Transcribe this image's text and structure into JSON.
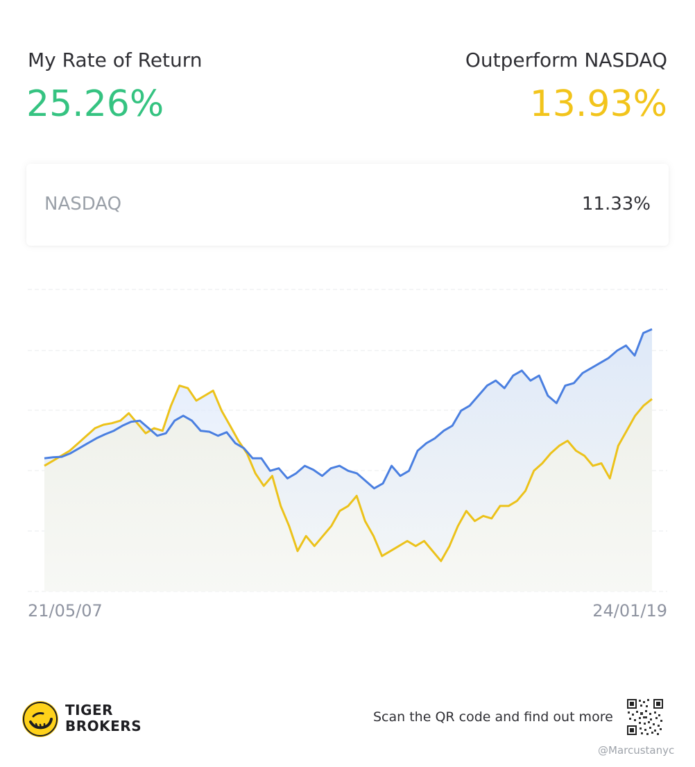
{
  "summary": {
    "my_return_label": "My Rate of Return",
    "my_return_value": "25.26%",
    "outperform_label": "Outperform NASDAQ",
    "outperform_value": "13.93%"
  },
  "benchmark": {
    "name": "NASDAQ",
    "value": "11.33%"
  },
  "colors": {
    "portfolio": "#4a7fe0",
    "nasdaq": "#ecc21a",
    "gain": "#35c381",
    "outperform": "#f2c41b"
  },
  "chart_data": {
    "type": "line",
    "x_start_label": "21/05/07",
    "x_end_label": "24/01/19",
    "grid": true,
    "series": [
      {
        "color": "#4a7fe0",
        "values": [
          -0.5,
          -0.3,
          -0.2,
          0.5,
          1.5,
          2.5,
          3.5,
          4.3,
          5.0,
          6.0,
          6.8,
          7.0,
          5.5,
          4.0,
          4.5,
          7.0,
          8.0,
          7.0,
          5.0,
          4.8,
          4.0,
          4.7,
          2.5,
          1.5,
          -0.5,
          -0.5,
          -3.0,
          -2.5,
          -4.5,
          -3.5,
          -2.0,
          -2.8,
          -4.0,
          -2.5,
          -2.0,
          -3.0,
          -3.5,
          -5.0,
          -6.5,
          -5.5,
          -2.0,
          -4.0,
          -3.0,
          1.0,
          2.5,
          3.5,
          5.0,
          6.0,
          9.0,
          10.0,
          12.0,
          14.0,
          15.0,
          13.5,
          16.0,
          17.0,
          15.0,
          16.0,
          12.0,
          10.5,
          14.0,
          14.5,
          16.5,
          17.5,
          18.5,
          19.5,
          21.0,
          22.0,
          20.0,
          24.5,
          25.26
        ]
      },
      {
        "color": "#ecc21a",
        "values": [
          -2.0,
          -1.0,
          0.0,
          1.0,
          2.5,
          4.0,
          5.5,
          6.2,
          6.5,
          7.0,
          8.5,
          6.5,
          4.5,
          5.5,
          5.0,
          10.0,
          14.0,
          13.5,
          11.0,
          12.0,
          13.0,
          9.0,
          6.0,
          3.0,
          0.5,
          -3.5,
          -6.0,
          -4.0,
          -10.0,
          -14.0,
          -19.0,
          -16.0,
          -18.0,
          -16.0,
          -14.0,
          -11.0,
          -10.0,
          -8.0,
          -13.0,
          -16.0,
          -20.0,
          -19.0,
          -18.0,
          -17.0,
          -18.0,
          -17.0,
          -19.0,
          -21.0,
          -18.0,
          -14.0,
          -11.0,
          -13.0,
          -12.0,
          -12.5,
          -10.0,
          -10.0,
          -9.0,
          -7.0,
          -3.0,
          -1.5,
          0.5,
          2.0,
          3.0,
          1.0,
          0.0,
          -2.0,
          -1.5,
          -4.5,
          2.0,
          5.0,
          8.0,
          10.0,
          11.33
        ]
      }
    ]
  },
  "footer": {
    "brand_line1": "TIGER",
    "brand_line2": "BROKERS",
    "scan_text": "Scan the QR code and find out more",
    "watermark": "@Marcustanyc"
  }
}
